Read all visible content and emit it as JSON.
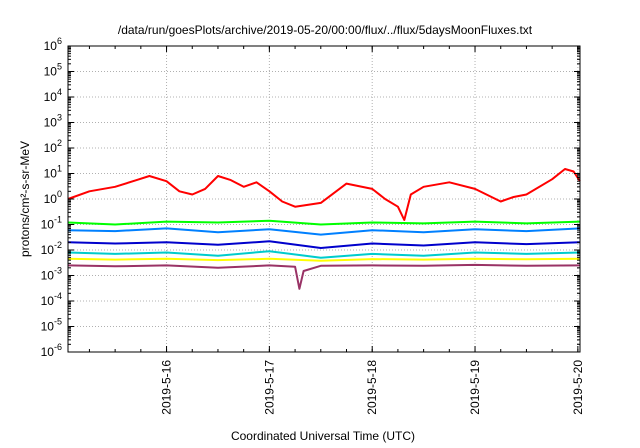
{
  "chart_data": {
    "type": "line",
    "title": "/data/run/goesPlots/archive/2019-05-20/00:00/flux/../flux/5daysMoonFluxes.txt",
    "xlabel": "Coordinated Universal Time (UTC)",
    "ylabel": "protons/cm²-s-sr-MeV",
    "y_scale": "log",
    "ylim": [
      1e-06,
      1000000.0
    ],
    "xlim": [
      "2019-05-15T01:00",
      "2019-05-20T00:30"
    ],
    "x_ticks": [
      "2019-5-16",
      "2019-5-17",
      "2019-5-18",
      "2019-5-19",
      "2019-5-20"
    ],
    "y_ticks": [
      {
        "base": "10",
        "exp": "-6"
      },
      {
        "base": "10",
        "exp": "-5"
      },
      {
        "base": "10",
        "exp": "-4"
      },
      {
        "base": "10",
        "exp": "-3"
      },
      {
        "base": "10",
        "exp": "-2"
      },
      {
        "base": "10",
        "exp": "-1"
      },
      {
        "base": "10",
        "exp": "0"
      },
      {
        "base": "10",
        "exp": "1"
      },
      {
        "base": "10",
        "exp": "2"
      },
      {
        "base": "10",
        "exp": "3"
      },
      {
        "base": "10",
        "exp": "4"
      },
      {
        "base": "10",
        "exp": "5"
      },
      {
        "base": "10",
        "exp": "6"
      }
    ],
    "grid": true,
    "series": [
      {
        "color": "#ff0000",
        "x": [
          "2019-05-15T01:00",
          "2019-05-15T06:00",
          "2019-05-15T12:00",
          "2019-05-15T17:00",
          "2019-05-15T20:00",
          "2019-05-16T00:00",
          "2019-05-16T03:00",
          "2019-05-16T06:00",
          "2019-05-16T09:00",
          "2019-05-16T12:00",
          "2019-05-16T15:00",
          "2019-05-16T18:00",
          "2019-05-16T21:00",
          "2019-05-17T00:00",
          "2019-05-17T03:00",
          "2019-05-17T06:00",
          "2019-05-17T12:00",
          "2019-05-17T18:00",
          "2019-05-18T00:00",
          "2019-05-18T03:00",
          "2019-05-18T06:00",
          "2019-05-18T07:30",
          "2019-05-18T09:00",
          "2019-05-18T12:00",
          "2019-05-18T18:00",
          "2019-05-19T00:00",
          "2019-05-19T06:00",
          "2019-05-19T09:00",
          "2019-05-19T12:00",
          "2019-05-19T18:00",
          "2019-05-19T21:00",
          "2019-05-19T23:00",
          "2019-05-20T00:30"
        ],
        "y": [
          1.0,
          2.0,
          3.0,
          5.5,
          8.0,
          5.0,
          2.0,
          1.5,
          2.5,
          8.0,
          5.5,
          3.0,
          4.5,
          2.0,
          0.8,
          0.5,
          0.7,
          4.0,
          2.5,
          1.0,
          0.5,
          0.15,
          1.5,
          3.0,
          4.5,
          2.5,
          0.8,
          1.2,
          1.5,
          6.0,
          15.0,
          12.0,
          5.0
        ]
      },
      {
        "color": "#00ff00",
        "x": [
          "2019-05-15T01:00",
          "2019-05-15T12:00",
          "2019-05-16T00:00",
          "2019-05-16T12:00",
          "2019-05-17T00:00",
          "2019-05-17T12:00",
          "2019-05-18T00:00",
          "2019-05-18T12:00",
          "2019-05-19T00:00",
          "2019-05-19T12:00",
          "2019-05-20T00:30"
        ],
        "y": [
          0.12,
          0.1,
          0.13,
          0.12,
          0.14,
          0.1,
          0.12,
          0.11,
          0.13,
          0.11,
          0.13
        ]
      },
      {
        "color": "#0080ff",
        "x": [
          "2019-05-15T01:00",
          "2019-05-15T12:00",
          "2019-05-16T00:00",
          "2019-05-16T12:00",
          "2019-05-17T00:00",
          "2019-05-17T12:00",
          "2019-05-18T00:00",
          "2019-05-18T12:00",
          "2019-05-19T00:00",
          "2019-05-19T12:00",
          "2019-05-20T00:30"
        ],
        "y": [
          0.06,
          0.055,
          0.07,
          0.05,
          0.065,
          0.04,
          0.06,
          0.05,
          0.065,
          0.055,
          0.07
        ]
      },
      {
        "color": "#0000cc",
        "x": [
          "2019-05-15T01:00",
          "2019-05-15T12:00",
          "2019-05-16T00:00",
          "2019-05-16T12:00",
          "2019-05-17T00:00",
          "2019-05-17T12:00",
          "2019-05-18T00:00",
          "2019-05-18T12:00",
          "2019-05-19T00:00",
          "2019-05-19T12:00",
          "2019-05-20T00:30"
        ],
        "y": [
          0.02,
          0.018,
          0.02,
          0.016,
          0.022,
          0.012,
          0.018,
          0.015,
          0.02,
          0.017,
          0.02
        ]
      },
      {
        "color": "#00cccc",
        "x": [
          "2019-05-15T01:00",
          "2019-05-15T12:00",
          "2019-05-16T00:00",
          "2019-05-16T12:00",
          "2019-05-17T00:00",
          "2019-05-17T12:00",
          "2019-05-18T00:00",
          "2019-05-18T12:00",
          "2019-05-19T00:00",
          "2019-05-19T12:00",
          "2019-05-20T00:30"
        ],
        "y": [
          0.008,
          0.007,
          0.008,
          0.006,
          0.009,
          0.005,
          0.007,
          0.006,
          0.008,
          0.007,
          0.008
        ]
      },
      {
        "color": "#ffff00",
        "x": [
          "2019-05-15T01:00",
          "2019-05-15T12:00",
          "2019-05-16T00:00",
          "2019-05-16T12:00",
          "2019-05-17T00:00",
          "2019-05-17T12:00",
          "2019-05-18T00:00",
          "2019-05-18T12:00",
          "2019-05-19T00:00",
          "2019-05-19T12:00",
          "2019-05-20T00:30"
        ],
        "y": [
          0.0045,
          0.0042,
          0.0045,
          0.004,
          0.0045,
          0.0038,
          0.0044,
          0.0042,
          0.0045,
          0.0043,
          0.0045
        ]
      },
      {
        "color": "#993366",
        "x": [
          "2019-05-15T01:00",
          "2019-05-15T12:00",
          "2019-05-16T00:00",
          "2019-05-16T12:00",
          "2019-05-17T00:00",
          "2019-05-17T06:00",
          "2019-05-17T07:00",
          "2019-05-17T08:00",
          "2019-05-17T12:00",
          "2019-05-18T00:00",
          "2019-05-18T12:00",
          "2019-05-19T00:00",
          "2019-05-19T12:00",
          "2019-05-20T00:30"
        ],
        "y": [
          0.0025,
          0.0023,
          0.0025,
          0.002,
          0.0025,
          0.0022,
          0.0003,
          0.0015,
          0.0024,
          0.0025,
          0.0024,
          0.0026,
          0.0024,
          0.0025
        ]
      }
    ]
  }
}
